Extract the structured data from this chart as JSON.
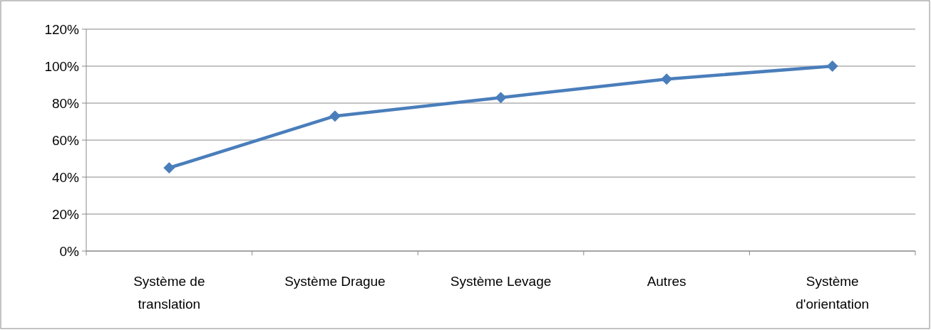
{
  "chart_data": {
    "type": "line",
    "categories": [
      "Système de translation",
      "Système Drague",
      "Système Levage",
      "Autres",
      "Système d'orientation"
    ],
    "series": [
      {
        "color": "#4a7ebb",
        "values": [
          45,
          73,
          83,
          93,
          100
        ]
      }
    ],
    "ylim": [
      0,
      120
    ],
    "yticks": [
      {
        "value": 0,
        "label": "0%"
      },
      {
        "value": 20,
        "label": "20%"
      },
      {
        "value": 40,
        "label": "40%"
      },
      {
        "value": 60,
        "label": "60%"
      },
      {
        "value": 80,
        "label": "80%"
      },
      {
        "value": 100,
        "label": "100%"
      },
      {
        "value": 120,
        "label": "120%"
      }
    ],
    "grid": "y",
    "marker": "diamond",
    "line_style": "solid"
  }
}
